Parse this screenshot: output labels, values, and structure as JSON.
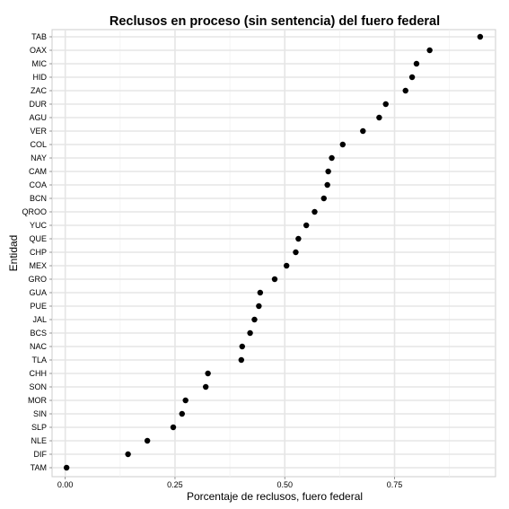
{
  "chart_data": {
    "type": "scatter",
    "title": "Reclusos en proceso  (sin sentencia) del fuero federal",
    "xlabel": "Porcentaje de reclusos, fuero federal",
    "ylabel": "Entidad",
    "xlim": [
      -0.03,
      0.98
    ],
    "x_ticks": [
      0.0,
      0.25,
      0.5,
      0.75
    ],
    "x_tick_labels": [
      "0.00",
      "0.25",
      "0.50",
      "0.75"
    ],
    "grid": true,
    "point_color": "#000000",
    "panel_background": "#ffffff",
    "grid_color": "#e5e5e5",
    "categories": [
      "TAB",
      "OAX",
      "MIC",
      "HID",
      "ZAC",
      "DUR",
      "AGU",
      "VER",
      "COL",
      "NAY",
      "CAM",
      "COA",
      "BCN",
      "QROO",
      "YUC",
      "QUE",
      "CHP",
      "MEX",
      "GRO",
      "GUA",
      "PUE",
      "JAL",
      "BCS",
      "NAC",
      "TLA",
      "CHH",
      "SON",
      "MOR",
      "SIN",
      "SLP",
      "NLE",
      "DIF",
      "TAM"
    ],
    "values": [
      0.945,
      0.83,
      0.8,
      0.79,
      0.775,
      0.73,
      0.715,
      0.678,
      0.632,
      0.607,
      0.599,
      0.597,
      0.589,
      0.568,
      0.549,
      0.531,
      0.525,
      0.504,
      0.477,
      0.444,
      0.441,
      0.431,
      0.421,
      0.403,
      0.401,
      0.325,
      0.32,
      0.274,
      0.266,
      0.246,
      0.187,
      0.143,
      0.003
    ]
  }
}
